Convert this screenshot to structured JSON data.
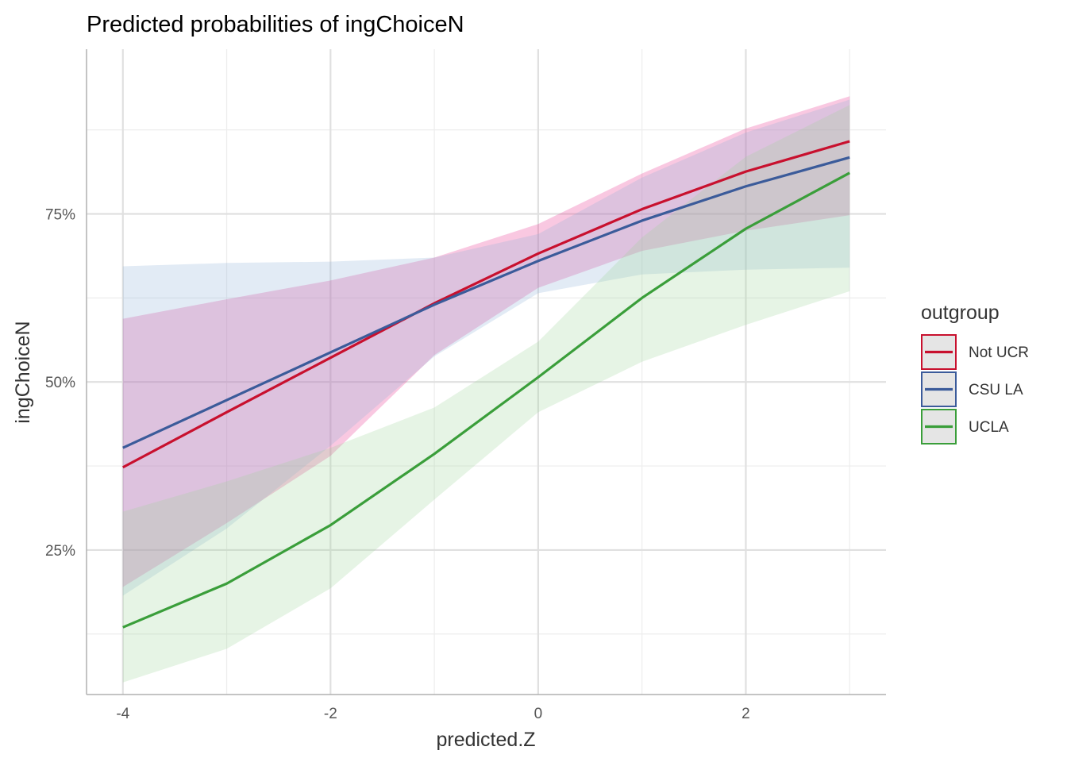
{
  "chart_data": {
    "type": "line",
    "title": "Predicted probabilities of ingChoiceN",
    "xlabel": "predicted.Z",
    "ylabel": "ingChoiceN",
    "x": [
      -4,
      -3,
      -2,
      -1,
      0,
      1,
      2,
      3
    ],
    "x_ticks": [
      -4,
      -2,
      0,
      2
    ],
    "x_tick_labels": [
      "-4",
      "-2",
      "0",
      "2"
    ],
    "y_ticks": [
      0.25,
      0.5,
      0.75
    ],
    "y_tick_labels": [
      "25%",
      "50%",
      "75%"
    ],
    "xlim": [
      -4.35,
      3.35
    ],
    "ylim": [
      0.035,
      0.995
    ],
    "grid": true,
    "legend_title": "outgroup",
    "legend_position": "right",
    "series": [
      {
        "name": "Not UCR",
        "color": "#C8102E",
        "fill": "#E7298A",
        "values": [
          0.373,
          0.455,
          0.536,
          0.617,
          0.691,
          0.757,
          0.813,
          0.858
        ],
        "lower": [
          0.195,
          0.29,
          0.39,
          0.54,
          0.64,
          0.695,
          0.725,
          0.748
        ],
        "upper": [
          0.594,
          0.623,
          0.651,
          0.685,
          0.735,
          0.81,
          0.877,
          0.925
        ]
      },
      {
        "name": "CSU LA",
        "color": "#3B5B9A",
        "fill": "#8FB0D8",
        "values": [
          0.402,
          0.473,
          0.544,
          0.615,
          0.68,
          0.74,
          0.791,
          0.834
        ],
        "lower": [
          0.182,
          0.282,
          0.405,
          0.538,
          0.632,
          0.66,
          0.667,
          0.67
        ],
        "upper": [
          0.672,
          0.677,
          0.679,
          0.685,
          0.72,
          0.804,
          0.871,
          0.92
        ]
      },
      {
        "name": "UCLA",
        "color": "#3A9E3A",
        "fill": "#9ED69A",
        "values": [
          0.135,
          0.2,
          0.287,
          0.393,
          0.507,
          0.625,
          0.728,
          0.811
        ],
        "lower": [
          0.053,
          0.103,
          0.193,
          0.325,
          0.455,
          0.53,
          0.585,
          0.635
        ],
        "upper": [
          0.307,
          0.352,
          0.402,
          0.462,
          0.56,
          0.715,
          0.835,
          0.912
        ]
      }
    ]
  }
}
